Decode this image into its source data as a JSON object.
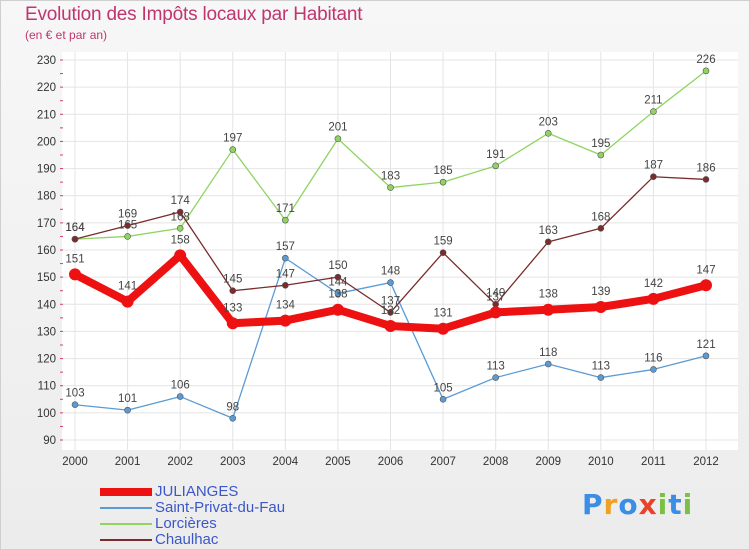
{
  "header": {
    "title": "Evolution des Impôts locaux par Habitant",
    "subtitle": "(en € et par an)"
  },
  "chart_data": {
    "type": "line",
    "title": "Evolution des Impôts locaux par Habitant",
    "subtitle": "(en € et par an)",
    "xlabel": "",
    "ylabel": "",
    "x": [
      "2000",
      "2001",
      "2002",
      "2003",
      "2004",
      "2005",
      "2006",
      "2007",
      "2008",
      "2009",
      "2010",
      "2011",
      "2012"
    ],
    "ylim": [
      90,
      230
    ],
    "yticks": [
      90,
      100,
      110,
      120,
      130,
      140,
      150,
      160,
      170,
      180,
      190,
      200,
      210,
      220,
      230
    ],
    "grid": true,
    "legend_position": "bottom-left",
    "series": [
      {
        "name": "JULIANGES",
        "color": "#ee1111",
        "values": [
          151,
          141,
          158,
          133,
          134,
          138,
          132,
          131,
          137,
          138,
          139,
          142,
          147
        ]
      },
      {
        "name": "Saint-Privat-du-Fau",
        "color": "#5b9bd5",
        "values": [
          103,
          101,
          106,
          98,
          157,
          144,
          148,
          105,
          113,
          118,
          113,
          116,
          121
        ]
      },
      {
        "name": "Lorcières",
        "color": "#8fd460",
        "values": [
          164,
          165,
          168,
          197,
          171,
          201,
          183,
          185,
          191,
          203,
          195,
          211,
          226
        ]
      },
      {
        "name": "Chaulhac",
        "color": "#7a2b2b",
        "values": [
          164,
          169,
          174,
          145,
          147,
          150,
          137,
          159,
          140,
          163,
          168,
          187,
          186
        ]
      }
    ]
  },
  "logo": {
    "letters": [
      "P",
      "r",
      "o",
      "x",
      "i",
      "t",
      "i"
    ],
    "colors": [
      "#3a8ee6",
      "#f0a022",
      "#3a8ee6",
      "#e8432a",
      "#7ac143",
      "#3a8ee6",
      "#7ac143"
    ]
  }
}
